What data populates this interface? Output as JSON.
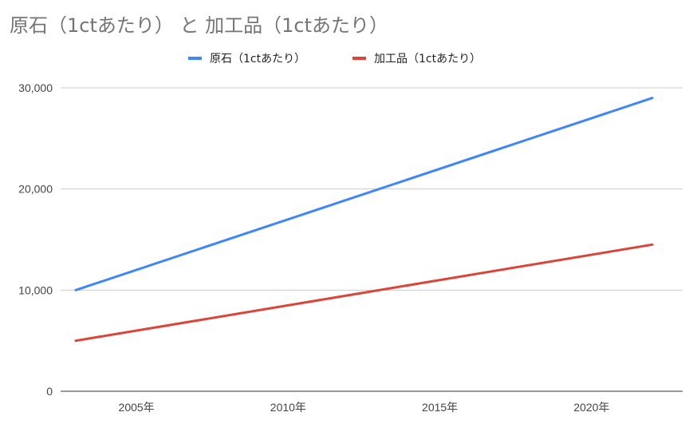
{
  "chart_data": {
    "type": "line",
    "title": "原石（1ctあたり） と 加工品（1ctあたり）",
    "xlabel": "",
    "ylabel": "",
    "x_range": [
      2002.5,
      2023
    ],
    "ylim": [
      0,
      30000
    ],
    "y_ticks": [
      "0",
      "10,000",
      "20,000",
      "30,000"
    ],
    "x_ticks": [
      {
        "year": 2005,
        "label": "2005年"
      },
      {
        "year": 2010,
        "label": "2010年"
      },
      {
        "year": 2015,
        "label": "2015年"
      },
      {
        "year": 2020,
        "label": "2020年"
      }
    ],
    "grid": true,
    "legend_position": "top",
    "series": [
      {
        "name": "原石（1ctあたり）",
        "color": "#4285F4",
        "x": [
          2003,
          2022
        ],
        "values": [
          10000,
          29000
        ]
      },
      {
        "name": "加工品（1ctあたり）",
        "color": "#DB4437",
        "x": [
          2003,
          2022
        ],
        "values": [
          5000,
          14500
        ]
      }
    ]
  }
}
